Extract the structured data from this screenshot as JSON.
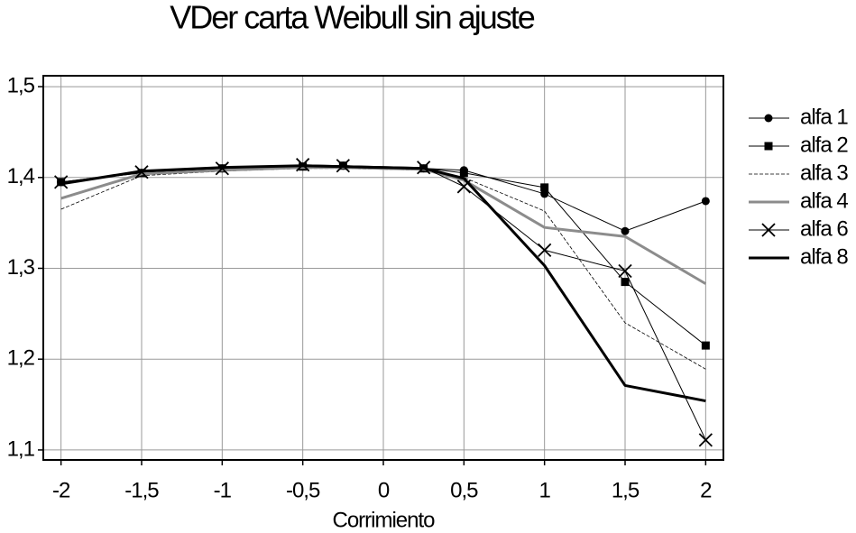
{
  "chart_data": {
    "type": "line",
    "title": "VDer carta Weibull sin ajuste",
    "x_label": "Corrimiento",
    "x": [
      -2,
      -1.5,
      -1,
      -0.5,
      -0.25,
      0.25,
      0.5,
      1,
      1.5,
      2
    ],
    "xlim": [
      -2.11,
      2.11
    ],
    "xticks": [
      -2,
      {
        "value": -1.5,
        "label": "-1,5"
      },
      -1,
      {
        "value": -0.5,
        "label": "-0,5"
      },
      0,
      {
        "value": 0.5,
        "label": "0,5"
      },
      1,
      {
        "value": 1.5,
        "label": "1,5"
      },
      2
    ],
    "ylim": [
      1.089,
      1.512
    ],
    "yticks": [
      {
        "value": 1.1,
        "label": "1,1"
      },
      {
        "value": 1.2,
        "label": "1,2"
      },
      {
        "value": 1.3,
        "label": "1,3"
      },
      {
        "value": 1.4,
        "label": "1,4"
      },
      {
        "value": 1.5,
        "label": "1,5"
      }
    ],
    "grid": true,
    "series": [
      {
        "name": "alfa 1",
        "color": "#000000",
        "line_width": 1,
        "marker": "circle",
        "values": [
          1.395,
          1.405,
          1.41,
          1.412,
          1.413,
          1.41,
          1.408,
          1.382,
          1.341,
          1.374
        ]
      },
      {
        "name": "alfa 2",
        "color": "#000000",
        "line_width": 1,
        "marker": "square",
        "values": [
          1.395,
          1.405,
          1.41,
          1.412,
          1.413,
          1.41,
          1.405,
          1.389,
          1.285,
          1.215
        ]
      },
      {
        "name": "alfa 3",
        "color": "#000000",
        "line_width": 0.8,
        "dash": true,
        "marker": "none",
        "values": [
          1.365,
          1.402,
          1.407,
          1.41,
          1.41,
          1.408,
          1.4,
          1.363,
          1.24,
          1.189
        ]
      },
      {
        "name": "alfa 4",
        "color": "#8c8c8c",
        "line_width": 3,
        "marker": "none",
        "values": [
          1.377,
          1.404,
          1.408,
          1.411,
          1.411,
          1.409,
          1.397,
          1.345,
          1.335,
          1.283
        ]
      },
      {
        "name": "alfa 6",
        "color": "#000000",
        "line_width": 1,
        "marker": "x",
        "values": [
          1.395,
          1.406,
          1.41,
          1.414,
          1.413,
          1.411,
          1.39,
          1.32,
          1.297,
          1.111
        ]
      },
      {
        "name": "alfa 8",
        "color": "#000000",
        "line_width": 3,
        "marker": "none",
        "values": [
          1.393,
          1.407,
          1.411,
          1.413,
          1.412,
          1.41,
          1.399,
          1.303,
          1.171,
          1.154
        ]
      }
    ]
  }
}
